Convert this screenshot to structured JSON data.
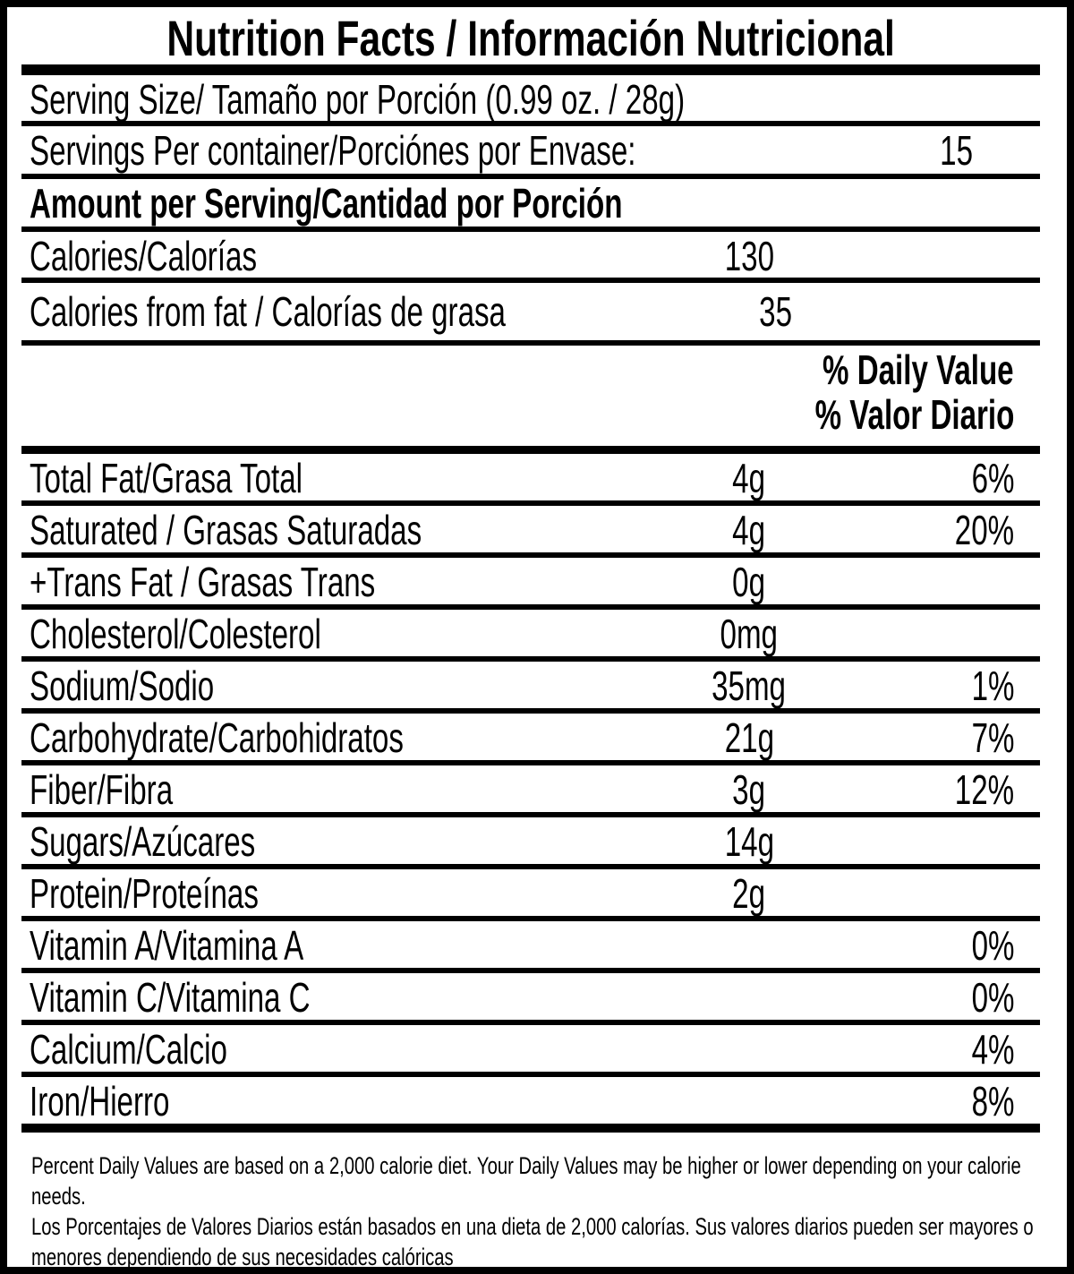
{
  "colors": {
    "ink": "#000000",
    "paper": "#ffffff"
  },
  "label": {
    "title": "Nutrition Facts / Información Nutricional",
    "serving_size": "Serving Size/ Tamaño por Porción  (0.99 oz. / 28g)",
    "servings_per_container": {
      "label": "Servings Per container/Porciónes por Envase:",
      "value": "15"
    },
    "amount_per_serving_header": "Amount per Serving/Cantidad por Porción",
    "calories": {
      "label": "Calories/Calorías",
      "value": "130"
    },
    "calories_from_fat": {
      "label": "Calories from fat / Calorías de grasa",
      "value": "35"
    },
    "daily_value_header": {
      "en": "% Daily Value",
      "es": "% Valor Diario"
    },
    "nutrients": [
      {
        "label": "Total Fat/Grasa Total",
        "amount": "4g",
        "dv": "6%"
      },
      {
        "label": "Saturated / Grasas Saturadas",
        "amount": "4g",
        "dv": "20%"
      },
      {
        "label": "+Trans Fat / Grasas Trans",
        "amount": "0g",
        "dv": ""
      },
      {
        "label": "Cholesterol/Colesterol",
        "amount": "0mg",
        "dv": ""
      },
      {
        "label": "Sodium/Sodio",
        "amount": "35mg",
        "dv": "1%"
      },
      {
        "label": "Carbohydrate/Carbohidratos",
        "amount": "21g",
        "dv": "7%"
      },
      {
        "label": "Fiber/Fibra",
        "amount": "3g",
        "dv": "12%"
      },
      {
        "label": "Sugars/Azúcares",
        "amount": "14g",
        "dv": ""
      },
      {
        "label": "Protein/Proteínas",
        "amount": "2g",
        "dv": ""
      },
      {
        "label": "Vitamin A/Vitamina A",
        "amount": "",
        "dv": "0%"
      },
      {
        "label": "Vitamin C/Vitamina C",
        "amount": "",
        "dv": "0%"
      },
      {
        "label": "Calcium/Calcio",
        "amount": "",
        "dv": "4%"
      },
      {
        "label": "Iron/Hierro",
        "amount": "",
        "dv": "8%"
      }
    ],
    "footnotes": {
      "en": "Percent Daily Values are based on a 2,000 calorie diet. Your Daily Values may be higher or lower depending on your calorie needs.",
      "es": "Los Porcentajes de Valores Diarios están basados en una dieta de 2,000 calorías. Sus valores diarios pueden ser mayores o menores dependiendo de sus necesidades calóricas"
    }
  }
}
